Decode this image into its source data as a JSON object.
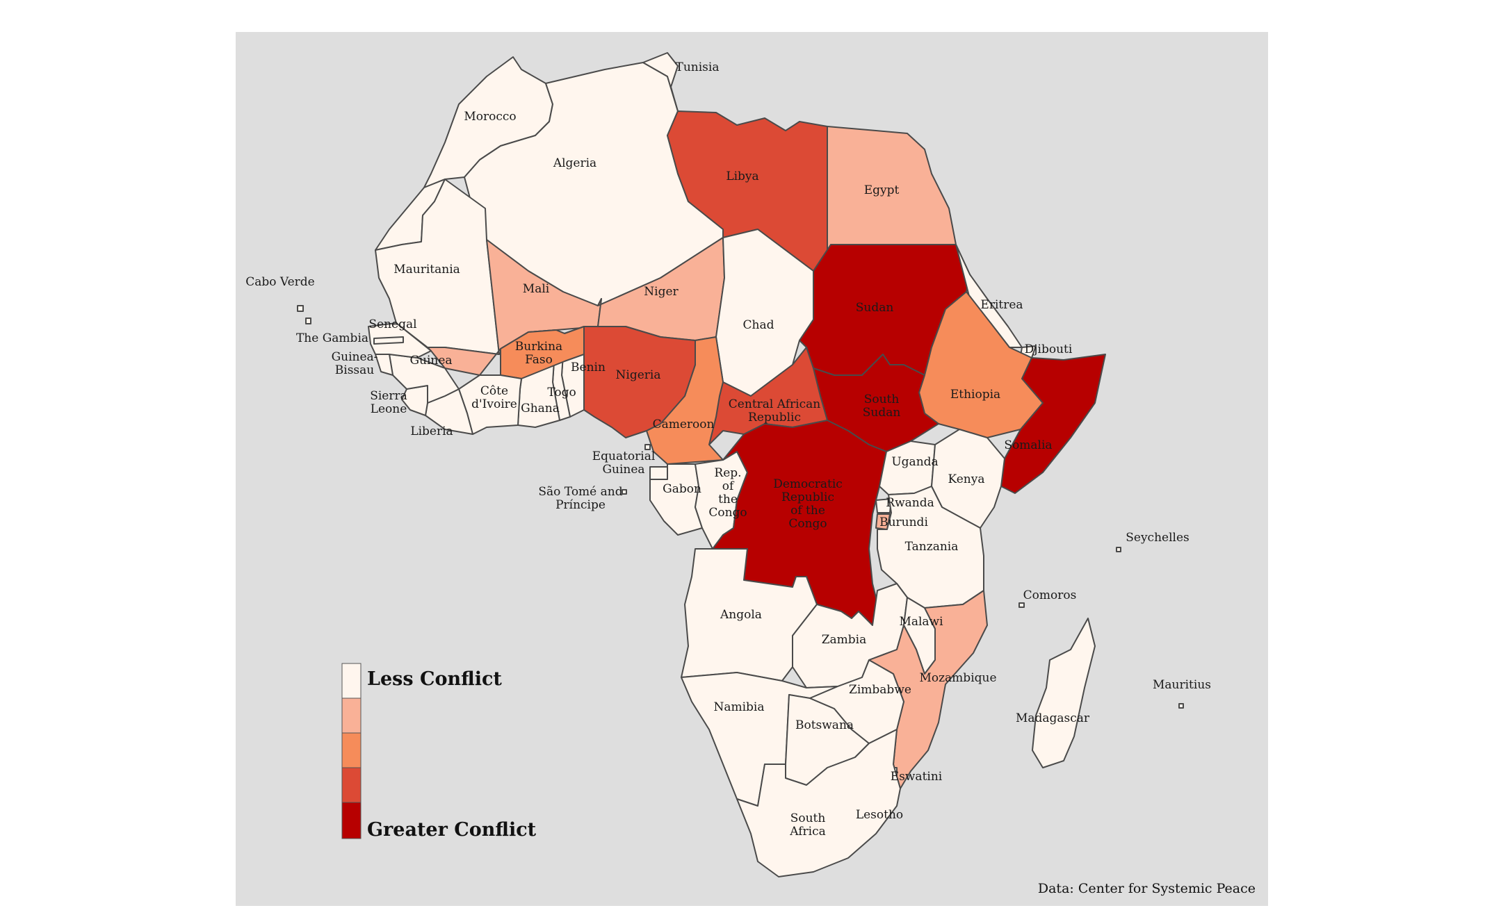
{
  "map": {
    "source": "Data: Center for Systemic Peace",
    "colors": {
      "background": "#dedede",
      "level1": "#fff6ee",
      "level2": "#f9b197",
      "level3": "#f68c5a",
      "level4": "#dc4a35",
      "level5": "#b70000"
    }
  },
  "legend": {
    "low_label": "Less Conflict",
    "high_label": "Greater Conflict"
  },
  "countries": [
    {
      "id": "morocco",
      "name": "Morocco",
      "level": 1
    },
    {
      "id": "western-sahara",
      "name": "",
      "level": 1
    },
    {
      "id": "algeria",
      "name": "Algeria",
      "level": 1
    },
    {
      "id": "tunisia",
      "name": "Tunisia",
      "level": 1
    },
    {
      "id": "libya",
      "name": "Libya",
      "level": 4
    },
    {
      "id": "egypt",
      "name": "Egypt",
      "level": 2
    },
    {
      "id": "mauritania",
      "name": "Mauritania",
      "level": 1
    },
    {
      "id": "mali",
      "name": "Mali",
      "level": 2
    },
    {
      "id": "niger",
      "name": "Niger",
      "level": 2
    },
    {
      "id": "chad",
      "name": "Chad",
      "level": 1
    },
    {
      "id": "sudan",
      "name": "Sudan",
      "level": 5
    },
    {
      "id": "eritrea",
      "name": "Eritrea",
      "level": 1
    },
    {
      "id": "djibouti",
      "name": "Djibouti",
      "level": 1
    },
    {
      "id": "ethiopia",
      "name": "Ethiopia",
      "level": 3
    },
    {
      "id": "somalia",
      "name": "Somalia",
      "level": 5
    },
    {
      "id": "south-sudan",
      "name": "South Sudan",
      "level": 5
    },
    {
      "id": "car",
      "name": "Central African Republic",
      "level": 4
    },
    {
      "id": "cameroon",
      "name": "Cameroon",
      "level": 3
    },
    {
      "id": "nigeria",
      "name": "Nigeria",
      "level": 4
    },
    {
      "id": "benin",
      "name": "Benin",
      "level": 1
    },
    {
      "id": "togo",
      "name": "Togo",
      "level": 1
    },
    {
      "id": "ghana",
      "name": "Ghana",
      "level": 1
    },
    {
      "id": "burkina-faso",
      "name": "Burkina Faso",
      "level": 3
    },
    {
      "id": "cote-divoire",
      "name": "Côte d'Ivoire",
      "level": 1
    },
    {
      "id": "liberia",
      "name": "Liberia",
      "level": 1
    },
    {
      "id": "sierra-leone",
      "name": "Sierra Leone",
      "level": 1
    },
    {
      "id": "guinea",
      "name": "Guinea",
      "level": 1
    },
    {
      "id": "guinea-bissau",
      "name": "Guinea-Bissau",
      "level": 1
    },
    {
      "id": "senegal",
      "name": "Senegal",
      "level": 1
    },
    {
      "id": "the-gambia",
      "name": "The Gambia",
      "level": 1
    },
    {
      "id": "cabo-verde",
      "name": "Cabo Verde",
      "level": 1
    },
    {
      "id": "equatorial-guinea",
      "name": "Equatorial Guinea",
      "level": 1
    },
    {
      "id": "sao-tome",
      "name": "São Tomé and Príncipe",
      "level": 1
    },
    {
      "id": "gabon",
      "name": "Gabon",
      "level": 1
    },
    {
      "id": "rep-congo",
      "name": "Rep. of the Congo",
      "level": 1
    },
    {
      "id": "drc",
      "name": "Democratic Republic of the Congo",
      "level": 5
    },
    {
      "id": "uganda",
      "name": "Uganda",
      "level": 1
    },
    {
      "id": "kenya",
      "name": "Kenya",
      "level": 1
    },
    {
      "id": "rwanda",
      "name": "Rwanda",
      "level": 1
    },
    {
      "id": "burundi",
      "name": "Burundi",
      "level": 2
    },
    {
      "id": "tanzania",
      "name": "Tanzania",
      "level": 1
    },
    {
      "id": "seychelles",
      "name": "Seychelles",
      "level": 1
    },
    {
      "id": "comoros",
      "name": "Comoros",
      "level": 1
    },
    {
      "id": "angola",
      "name": "Angola",
      "level": 1
    },
    {
      "id": "zambia",
      "name": "Zambia",
      "level": 1
    },
    {
      "id": "malawi",
      "name": "Malawi",
      "level": 1
    },
    {
      "id": "mozambique",
      "name": "Mozambique",
      "level": 2
    },
    {
      "id": "madagascar",
      "name": "Madagascar",
      "level": 1
    },
    {
      "id": "mauritius",
      "name": "Mauritius",
      "level": 1
    },
    {
      "id": "namibia",
      "name": "Namibia",
      "level": 1
    },
    {
      "id": "botswana",
      "name": "Botswana",
      "level": 1
    },
    {
      "id": "zimbabwe",
      "name": "Zimbabwe",
      "level": 1
    },
    {
      "id": "eswatini",
      "name": "Eswatini",
      "level": 1
    },
    {
      "id": "lesotho",
      "name": "Lesotho",
      "level": 1
    },
    {
      "id": "south-africa",
      "name": "South Africa",
      "level": 1
    }
  ]
}
